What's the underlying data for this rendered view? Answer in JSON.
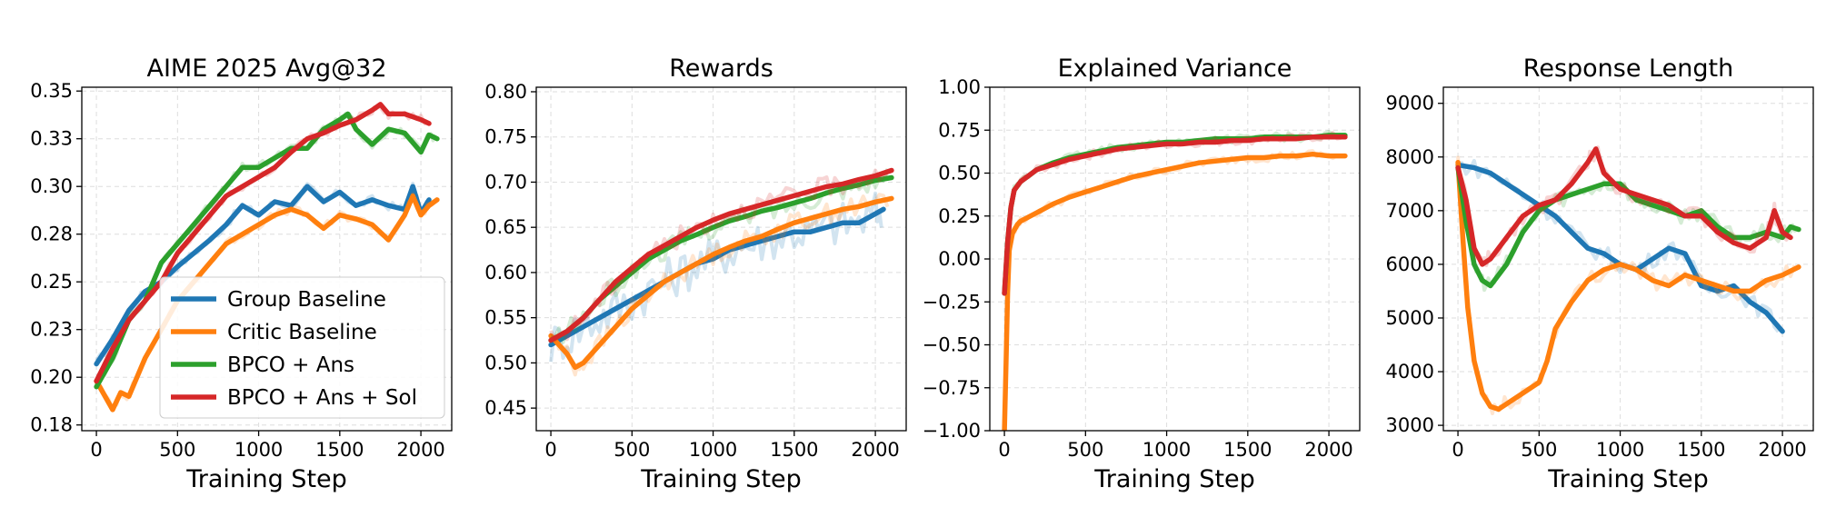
{
  "colors": {
    "group": "#1f77b4",
    "critic": "#ff7f0e",
    "bpco_ans": "#2ca02c",
    "bpco_ans_sol": "#d62728"
  },
  "legend": [
    "Group Baseline",
    "Critic Baseline",
    "BPCO + Ans",
    "BPCO + Ans + Sol"
  ],
  "chart_data": [
    {
      "type": "line",
      "title": "AIME 2025 Avg@32",
      "xlabel": "Training Step",
      "ylabel": "",
      "xlim": [
        -90,
        2190
      ],
      "ylim": [
        0.172,
        0.352
      ],
      "xticks": [
        0,
        500,
        1000,
        1500,
        2000
      ],
      "yticks": [
        0.175,
        0.2,
        0.225,
        0.25,
        0.275,
        0.3,
        0.325,
        0.35
      ],
      "ytick_labels": [
        "0.18",
        "0.20",
        "0.23",
        "0.25",
        "0.28",
        "0.30",
        "0.33",
        "0.35"
      ],
      "grid": true,
      "legend_position": "lower-right",
      "series": [
        {
          "name": "Group Baseline",
          "color": "#1f77b4",
          "x": [
            0,
            100,
            200,
            300,
            400,
            500,
            600,
            700,
            800,
            900,
            1000,
            1100,
            1200,
            1300,
            1400,
            1500,
            1600,
            1700,
            1800,
            1900,
            1950,
            2000,
            2050
          ],
          "y": [
            0.207,
            0.22,
            0.235,
            0.245,
            0.25,
            0.258,
            0.265,
            0.272,
            0.28,
            0.29,
            0.285,
            0.292,
            0.29,
            0.3,
            0.292,
            0.297,
            0.29,
            0.293,
            0.29,
            0.288,
            0.3,
            0.286,
            0.293
          ]
        },
        {
          "name": "Critic Baseline",
          "color": "#ff7f0e",
          "x": [
            0,
            100,
            150,
            200,
            300,
            400,
            500,
            600,
            700,
            800,
            900,
            1000,
            1100,
            1200,
            1300,
            1400,
            1500,
            1600,
            1700,
            1800,
            1900,
            1950,
            2000,
            2050,
            2100
          ],
          "y": [
            0.198,
            0.183,
            0.192,
            0.19,
            0.21,
            0.225,
            0.24,
            0.25,
            0.26,
            0.27,
            0.275,
            0.28,
            0.285,
            0.288,
            0.285,
            0.278,
            0.285,
            0.283,
            0.28,
            0.272,
            0.285,
            0.295,
            0.285,
            0.29,
            0.293
          ]
        },
        {
          "name": "BPCO + Ans",
          "color": "#2ca02c",
          "x": [
            0,
            100,
            200,
            300,
            400,
            500,
            600,
            700,
            800,
            900,
            1000,
            1100,
            1200,
            1300,
            1400,
            1500,
            1550,
            1600,
            1700,
            1800,
            1900,
            2000,
            2050,
            2100
          ],
          "y": [
            0.195,
            0.21,
            0.23,
            0.24,
            0.26,
            0.27,
            0.28,
            0.29,
            0.3,
            0.31,
            0.31,
            0.315,
            0.32,
            0.32,
            0.33,
            0.335,
            0.338,
            0.33,
            0.322,
            0.33,
            0.328,
            0.318,
            0.327,
            0.325
          ]
        },
        {
          "name": "BPCO + Ans + Sol",
          "color": "#d62728",
          "x": [
            0,
            100,
            200,
            300,
            400,
            500,
            600,
            700,
            800,
            900,
            1000,
            1100,
            1200,
            1300,
            1400,
            1500,
            1600,
            1700,
            1750,
            1800,
            1900,
            2000,
            2050
          ],
          "y": [
            0.198,
            0.215,
            0.23,
            0.24,
            0.25,
            0.265,
            0.275,
            0.285,
            0.295,
            0.3,
            0.305,
            0.31,
            0.318,
            0.325,
            0.328,
            0.332,
            0.335,
            0.34,
            0.343,
            0.338,
            0.338,
            0.335,
            0.333
          ]
        }
      ]
    },
    {
      "type": "line",
      "title": "Rewards",
      "xlabel": "Training Step",
      "ylabel": "",
      "xlim": [
        -90,
        2190
      ],
      "ylim": [
        0.425,
        0.805
      ],
      "xticks": [
        0,
        500,
        1000,
        1500,
        2000
      ],
      "yticks": [
        0.45,
        0.5,
        0.55,
        0.6,
        0.65,
        0.7,
        0.75,
        0.8
      ],
      "ytick_labels": [
        "0.45",
        "0.50",
        "0.55",
        "0.60",
        "0.65",
        "0.70",
        "0.75",
        "0.80"
      ],
      "grid": true,
      "series": [
        {
          "name": "Group Baseline",
          "color": "#1f77b4",
          "x": [
            0,
            100,
            200,
            300,
            400,
            500,
            600,
            700,
            800,
            900,
            1000,
            1100,
            1200,
            1300,
            1400,
            1500,
            1600,
            1700,
            1800,
            1900,
            2000,
            2050
          ],
          "y": [
            0.52,
            0.53,
            0.54,
            0.55,
            0.56,
            0.57,
            0.58,
            0.59,
            0.6,
            0.61,
            0.615,
            0.625,
            0.63,
            0.635,
            0.64,
            0.645,
            0.645,
            0.65,
            0.655,
            0.655,
            0.665,
            0.67
          ]
        },
        {
          "name": "Critic Baseline",
          "color": "#ff7f0e",
          "x": [
            0,
            100,
            150,
            200,
            300,
            400,
            500,
            600,
            700,
            800,
            900,
            1000,
            1100,
            1200,
            1300,
            1400,
            1500,
            1600,
            1700,
            1800,
            1900,
            2000,
            2100
          ],
          "y": [
            0.53,
            0.51,
            0.495,
            0.5,
            0.52,
            0.54,
            0.56,
            0.575,
            0.59,
            0.6,
            0.61,
            0.62,
            0.628,
            0.635,
            0.64,
            0.648,
            0.655,
            0.66,
            0.665,
            0.67,
            0.673,
            0.678,
            0.682
          ]
        },
        {
          "name": "BPCO + Ans",
          "color": "#2ca02c",
          "x": [
            0,
            100,
            200,
            300,
            400,
            500,
            600,
            700,
            800,
            900,
            1000,
            1100,
            1200,
            1300,
            1400,
            1500,
            1600,
            1700,
            1800,
            1900,
            2000,
            2100
          ],
          "y": [
            0.525,
            0.535,
            0.55,
            0.57,
            0.585,
            0.6,
            0.615,
            0.625,
            0.635,
            0.642,
            0.65,
            0.657,
            0.662,
            0.668,
            0.672,
            0.677,
            0.682,
            0.688,
            0.693,
            0.697,
            0.702,
            0.705
          ]
        },
        {
          "name": "BPCO + Ans + Sol",
          "color": "#d62728",
          "x": [
            0,
            100,
            200,
            300,
            400,
            500,
            600,
            700,
            800,
            900,
            1000,
            1100,
            1200,
            1300,
            1400,
            1500,
            1600,
            1700,
            1800,
            1900,
            2000,
            2100
          ],
          "y": [
            0.525,
            0.535,
            0.55,
            0.57,
            0.59,
            0.605,
            0.62,
            0.63,
            0.64,
            0.65,
            0.658,
            0.665,
            0.67,
            0.675,
            0.68,
            0.685,
            0.69,
            0.695,
            0.698,
            0.703,
            0.707,
            0.713
          ]
        }
      ]
    },
    {
      "type": "line",
      "title": "Explained Variance",
      "xlabel": "Training Step",
      "ylabel": "",
      "xlim": [
        -90,
        2190
      ],
      "ylim": [
        -1.0,
        1.0
      ],
      "xticks": [
        0,
        500,
        1000,
        1500,
        2000
      ],
      "yticks": [
        -1.0,
        -0.75,
        -0.5,
        -0.25,
        0.0,
        0.25,
        0.5,
        0.75,
        1.0
      ],
      "ytick_labels": [
        "−1.00",
        "−0.75",
        "−0.50",
        "−0.25",
        "0.00",
        "0.25",
        "0.50",
        "0.75",
        "1.00"
      ],
      "grid": true,
      "series": [
        {
          "name": "Critic Baseline",
          "color": "#ff7f0e",
          "x": [
            0,
            10,
            20,
            30,
            50,
            80,
            100,
            200,
            300,
            400,
            500,
            600,
            700,
            800,
            900,
            1000,
            1100,
            1200,
            1300,
            1400,
            1500,
            1600,
            1700,
            1800,
            1900,
            2000,
            2100
          ],
          "y": [
            -1.0,
            -0.6,
            -0.2,
            0.05,
            0.15,
            0.2,
            0.22,
            0.27,
            0.32,
            0.36,
            0.39,
            0.42,
            0.45,
            0.48,
            0.5,
            0.52,
            0.54,
            0.56,
            0.57,
            0.58,
            0.59,
            0.59,
            0.6,
            0.6,
            0.61,
            0.6,
            0.6
          ]
        },
        {
          "name": "BPCO + Ans",
          "color": "#2ca02c",
          "x": [
            0,
            20,
            40,
            60,
            100,
            200,
            300,
            400,
            500,
            600,
            700,
            800,
            900,
            1000,
            1100,
            1200,
            1300,
            1400,
            1500,
            1600,
            1700,
            1800,
            1900,
            2000,
            2100
          ],
          "y": [
            -0.2,
            0.1,
            0.3,
            0.4,
            0.45,
            0.52,
            0.56,
            0.59,
            0.61,
            0.63,
            0.65,
            0.66,
            0.67,
            0.68,
            0.68,
            0.69,
            0.7,
            0.7,
            0.7,
            0.71,
            0.71,
            0.71,
            0.71,
            0.72,
            0.72
          ]
        },
        {
          "name": "BPCO + Ans + Sol",
          "color": "#d62728",
          "x": [
            0,
            20,
            40,
            60,
            100,
            200,
            300,
            400,
            500,
            600,
            700,
            800,
            900,
            1000,
            1100,
            1200,
            1300,
            1400,
            1500,
            1600,
            1700,
            1800,
            1900,
            2000,
            2100
          ],
          "y": [
            -0.2,
            0.1,
            0.3,
            0.4,
            0.45,
            0.52,
            0.55,
            0.58,
            0.6,
            0.62,
            0.64,
            0.65,
            0.66,
            0.67,
            0.67,
            0.68,
            0.68,
            0.69,
            0.69,
            0.7,
            0.7,
            0.7,
            0.71,
            0.71,
            0.71
          ]
        }
      ]
    },
    {
      "type": "line",
      "title": "Response Length",
      "xlabel": "Training Step",
      "ylabel": "",
      "xlim": [
        -90,
        2190
      ],
      "ylim": [
        2900,
        9300
      ],
      "xticks": [
        0,
        500,
        1000,
        1500,
        2000
      ],
      "yticks": [
        3000,
        4000,
        5000,
        6000,
        7000,
        8000,
        9000
      ],
      "ytick_labels": [
        "3000",
        "4000",
        "5000",
        "6000",
        "7000",
        "8000",
        "9000"
      ],
      "grid": true,
      "series": [
        {
          "name": "Group Baseline",
          "color": "#1f77b4",
          "x": [
            0,
            100,
            200,
            300,
            400,
            500,
            600,
            700,
            800,
            900,
            1000,
            1100,
            1200,
            1300,
            1400,
            1500,
            1600,
            1700,
            1800,
            1900,
            2000
          ],
          "y": [
            7850,
            7800,
            7700,
            7500,
            7300,
            7100,
            6900,
            6600,
            6300,
            6200,
            6000,
            5900,
            6100,
            6300,
            6200,
            5600,
            5500,
            5600,
            5300,
            5100,
            4750
          ]
        },
        {
          "name": "Critic Baseline",
          "color": "#ff7f0e",
          "x": [
            0,
            30,
            60,
            100,
            150,
            200,
            250,
            300,
            400,
            500,
            550,
            600,
            700,
            800,
            900,
            1000,
            1100,
            1200,
            1300,
            1400,
            1500,
            1600,
            1700,
            1800,
            1900,
            2000,
            2100
          ],
          "y": [
            7900,
            6500,
            5200,
            4200,
            3600,
            3350,
            3300,
            3400,
            3600,
            3800,
            4200,
            4800,
            5300,
            5700,
            5900,
            6000,
            5900,
            5700,
            5600,
            5800,
            5700,
            5600,
            5500,
            5500,
            5700,
            5800,
            5950
          ]
        },
        {
          "name": "BPCO + Ans",
          "color": "#2ca02c",
          "x": [
            0,
            50,
            100,
            150,
            200,
            300,
            400,
            500,
            600,
            700,
            800,
            900,
            1000,
            1100,
            1200,
            1300,
            1400,
            1500,
            1600,
            1700,
            1800,
            1900,
            2000,
            2050,
            2100
          ],
          "y": [
            7800,
            6800,
            6000,
            5700,
            5600,
            6000,
            6600,
            7000,
            7200,
            7300,
            7400,
            7500,
            7500,
            7200,
            7100,
            7000,
            6900,
            7000,
            6700,
            6500,
            6500,
            6600,
            6500,
            6700,
            6650
          ]
        },
        {
          "name": "BPCO + Ans + Sol",
          "color": "#d62728",
          "x": [
            0,
            50,
            100,
            150,
            200,
            300,
            400,
            500,
            600,
            700,
            800,
            850,
            900,
            1000,
            1100,
            1200,
            1300,
            1400,
            1500,
            1600,
            1700,
            1800,
            1900,
            1950,
            2000,
            2050
          ],
          "y": [
            7800,
            7200,
            6300,
            6000,
            6100,
            6500,
            6900,
            7100,
            7200,
            7500,
            7900,
            8150,
            7700,
            7400,
            7300,
            7200,
            7100,
            6900,
            6900,
            6600,
            6400,
            6300,
            6500,
            7000,
            6600,
            6500
          ]
        }
      ]
    }
  ]
}
